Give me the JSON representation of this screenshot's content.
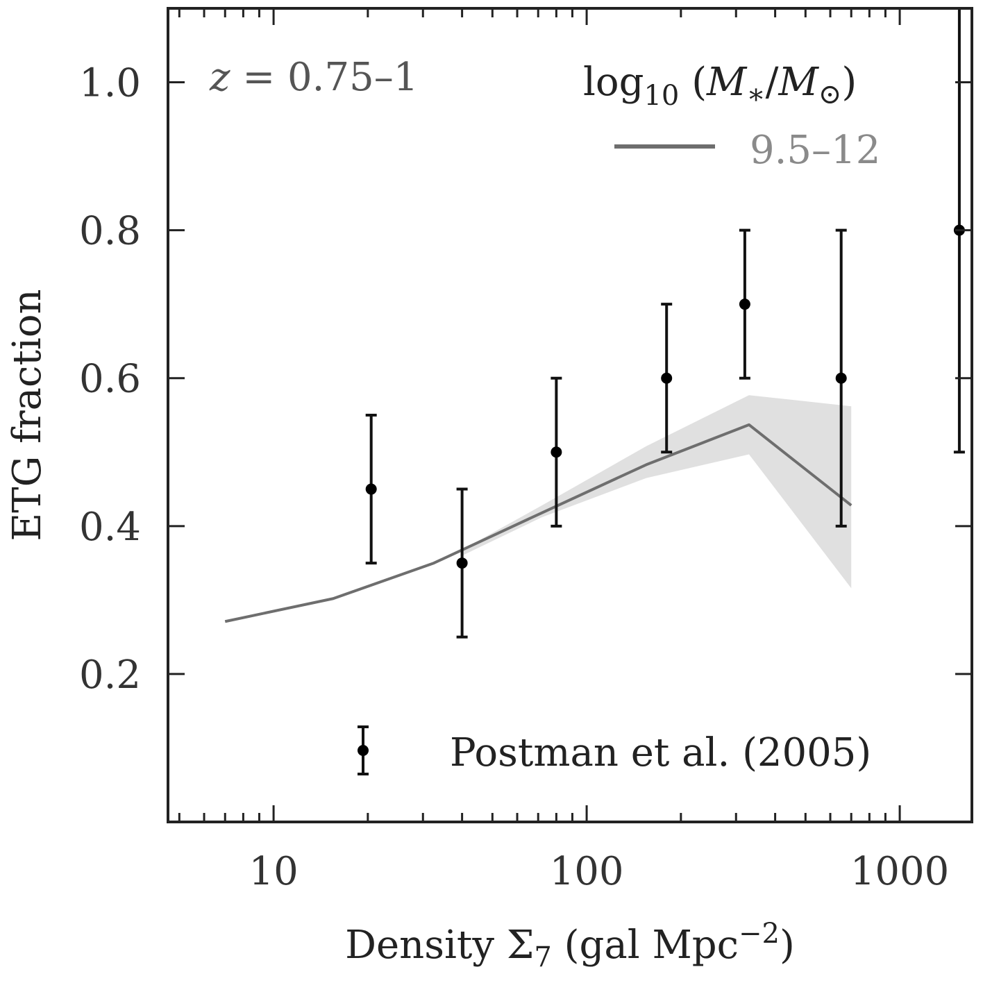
{
  "chart_data": {
    "type": "line",
    "title": "",
    "xlabel": "Density Σ7 (gal Mpc−2)",
    "xlabel_parts": {
      "prefix": "Density ",
      "symbol": "Σ",
      "subscript": "7",
      "unit_open": " (gal Mpc",
      "unit_exp": "−2",
      "unit_close": ")"
    },
    "ylabel": "ETG fraction",
    "xscale": "log",
    "xlim": [
      4.6,
      1700
    ],
    "ylim": [
      0.0,
      1.1
    ],
    "x_ticks": [
      10,
      100,
      1000
    ],
    "x_tick_labels": [
      "10",
      "100",
      "1000"
    ],
    "y_ticks": [
      0.2,
      0.4,
      0.6,
      0.8,
      1.0
    ],
    "y_tick_labels": [
      "0.2",
      "0.4",
      "0.6",
      "0.8",
      "1.0"
    ],
    "annotation": {
      "var": "z",
      "text": " = 0.75–1"
    },
    "legend_title": {
      "prefix": "log",
      "sub": "10",
      "open": " (",
      "m": "M",
      "star": "∗",
      "slash": "/",
      "m2": "M",
      "sun": "⊙",
      "close": ")"
    },
    "series": [
      {
        "name": "9.5–12",
        "kind": "line",
        "color": "#6e6e6e",
        "band_color": "#e0e0e0",
        "x": [
          7,
          15.5,
          32.5,
          72,
          155,
          330,
          700
        ],
        "y": [
          0.271,
          0.302,
          0.35,
          0.418,
          0.483,
          0.537,
          0.428
        ],
        "band_x": [
          40,
          72,
          155,
          330,
          700
        ],
        "band_upper": [
          0.368,
          0.428,
          0.508,
          0.577,
          0.562
        ],
        "band_lower": [
          0.36,
          0.412,
          0.465,
          0.497,
          0.316
        ]
      },
      {
        "name": "Postman et al. (2005)",
        "kind": "errorbar",
        "color": "#000000",
        "x": [
          20.5,
          40,
          80,
          180,
          320,
          650,
          1550
        ],
        "y": [
          0.45,
          0.35,
          0.5,
          0.6,
          0.7,
          0.6,
          0.8
        ],
        "y_err_lower": [
          0.35,
          0.25,
          0.4,
          0.5,
          0.6,
          0.4,
          0.5
        ],
        "y_err_upper": [
          0.55,
          0.45,
          0.6,
          0.7,
          0.8,
          0.8,
          1.1
        ]
      }
    ]
  }
}
